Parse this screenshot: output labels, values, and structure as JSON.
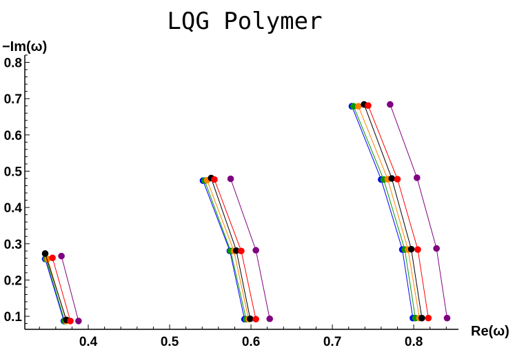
{
  "chart_data": {
    "type": "line",
    "title": "LQG Polymer",
    "xlabel": "Re(ω)",
    "ylabel": "−Im(ω)",
    "xlim": [
      0.322,
      0.855
    ],
    "ylim": [
      0.064,
      0.82
    ],
    "xticks": [
      "0.4",
      "0.5",
      "0.6",
      "0.7",
      "0.8"
    ],
    "yticks": [
      "0.1",
      "0.2",
      "0.3",
      "0.4",
      "0.5",
      "0.6",
      "0.7",
      "0.8"
    ],
    "grid": false,
    "markers": true,
    "series": [
      {
        "color": "#0000ff",
        "groups": [
          [
            [
              0.347,
              0.258
            ],
            [
              0.37,
              0.087
            ]
          ],
          [
            [
              0.541,
              0.474
            ],
            [
              0.574,
              0.28
            ],
            [
              0.592,
              0.092
            ]
          ],
          [
            [
              0.724,
              0.679
            ],
            [
              0.76,
              0.477
            ],
            [
              0.786,
              0.284
            ],
            [
              0.799,
              0.095
            ]
          ]
        ]
      },
      {
        "color": "#009900",
        "groups": [
          [
            [
              0.348,
              0.258
            ],
            [
              0.371,
              0.087
            ]
          ],
          [
            [
              0.543,
              0.474
            ],
            [
              0.575,
              0.28
            ],
            [
              0.594,
              0.092
            ]
          ],
          [
            [
              0.726,
              0.679
            ],
            [
              0.763,
              0.477
            ],
            [
              0.789,
              0.284
            ],
            [
              0.802,
              0.095
            ]
          ]
        ]
      },
      {
        "color": "#ff8000",
        "groups": [
          [
            [
              0.35,
              0.258
            ],
            [
              0.373,
              0.087
            ]
          ],
          [
            [
              0.546,
              0.475
            ],
            [
              0.579,
              0.28
            ],
            [
              0.597,
              0.092
            ]
          ],
          [
            [
              0.732,
              0.679
            ],
            [
              0.768,
              0.478
            ],
            [
              0.793,
              0.284
            ],
            [
              0.807,
              0.095
            ]
          ]
        ]
      },
      {
        "color": "#000000",
        "groups": [
          [
            [
              0.347,
              0.273
            ],
            [
              0.373,
              0.09
            ]
          ],
          [
            [
              0.551,
              0.481
            ],
            [
              0.582,
              0.281
            ],
            [
              0.599,
              0.093
            ]
          ],
          [
            [
              0.739,
              0.684
            ],
            [
              0.773,
              0.48
            ],
            [
              0.797,
              0.285
            ],
            [
              0.81,
              0.095
            ]
          ]
        ]
      },
      {
        "color": "#ff0000",
        "groups": [
          [
            [
              0.356,
              0.261
            ],
            [
              0.378,
              0.087
            ]
          ],
          [
            [
              0.555,
              0.477
            ],
            [
              0.588,
              0.28
            ],
            [
              0.606,
              0.092
            ]
          ],
          [
            [
              0.744,
              0.681
            ],
            [
              0.78,
              0.478
            ],
            [
              0.805,
              0.284
            ],
            [
              0.818,
              0.095
            ]
          ]
        ]
      },
      {
        "color": "#800080",
        "groups": [
          [
            [
              0.367,
              0.266
            ],
            [
              0.388,
              0.087
            ]
          ],
          [
            [
              0.575,
              0.479
            ],
            [
              0.606,
              0.282
            ],
            [
              0.623,
              0.093
            ]
          ],
          [
            [
              0.771,
              0.684
            ],
            [
              0.804,
              0.482
            ],
            [
              0.828,
              0.287
            ],
            [
              0.841,
              0.095
            ]
          ]
        ]
      }
    ]
  }
}
